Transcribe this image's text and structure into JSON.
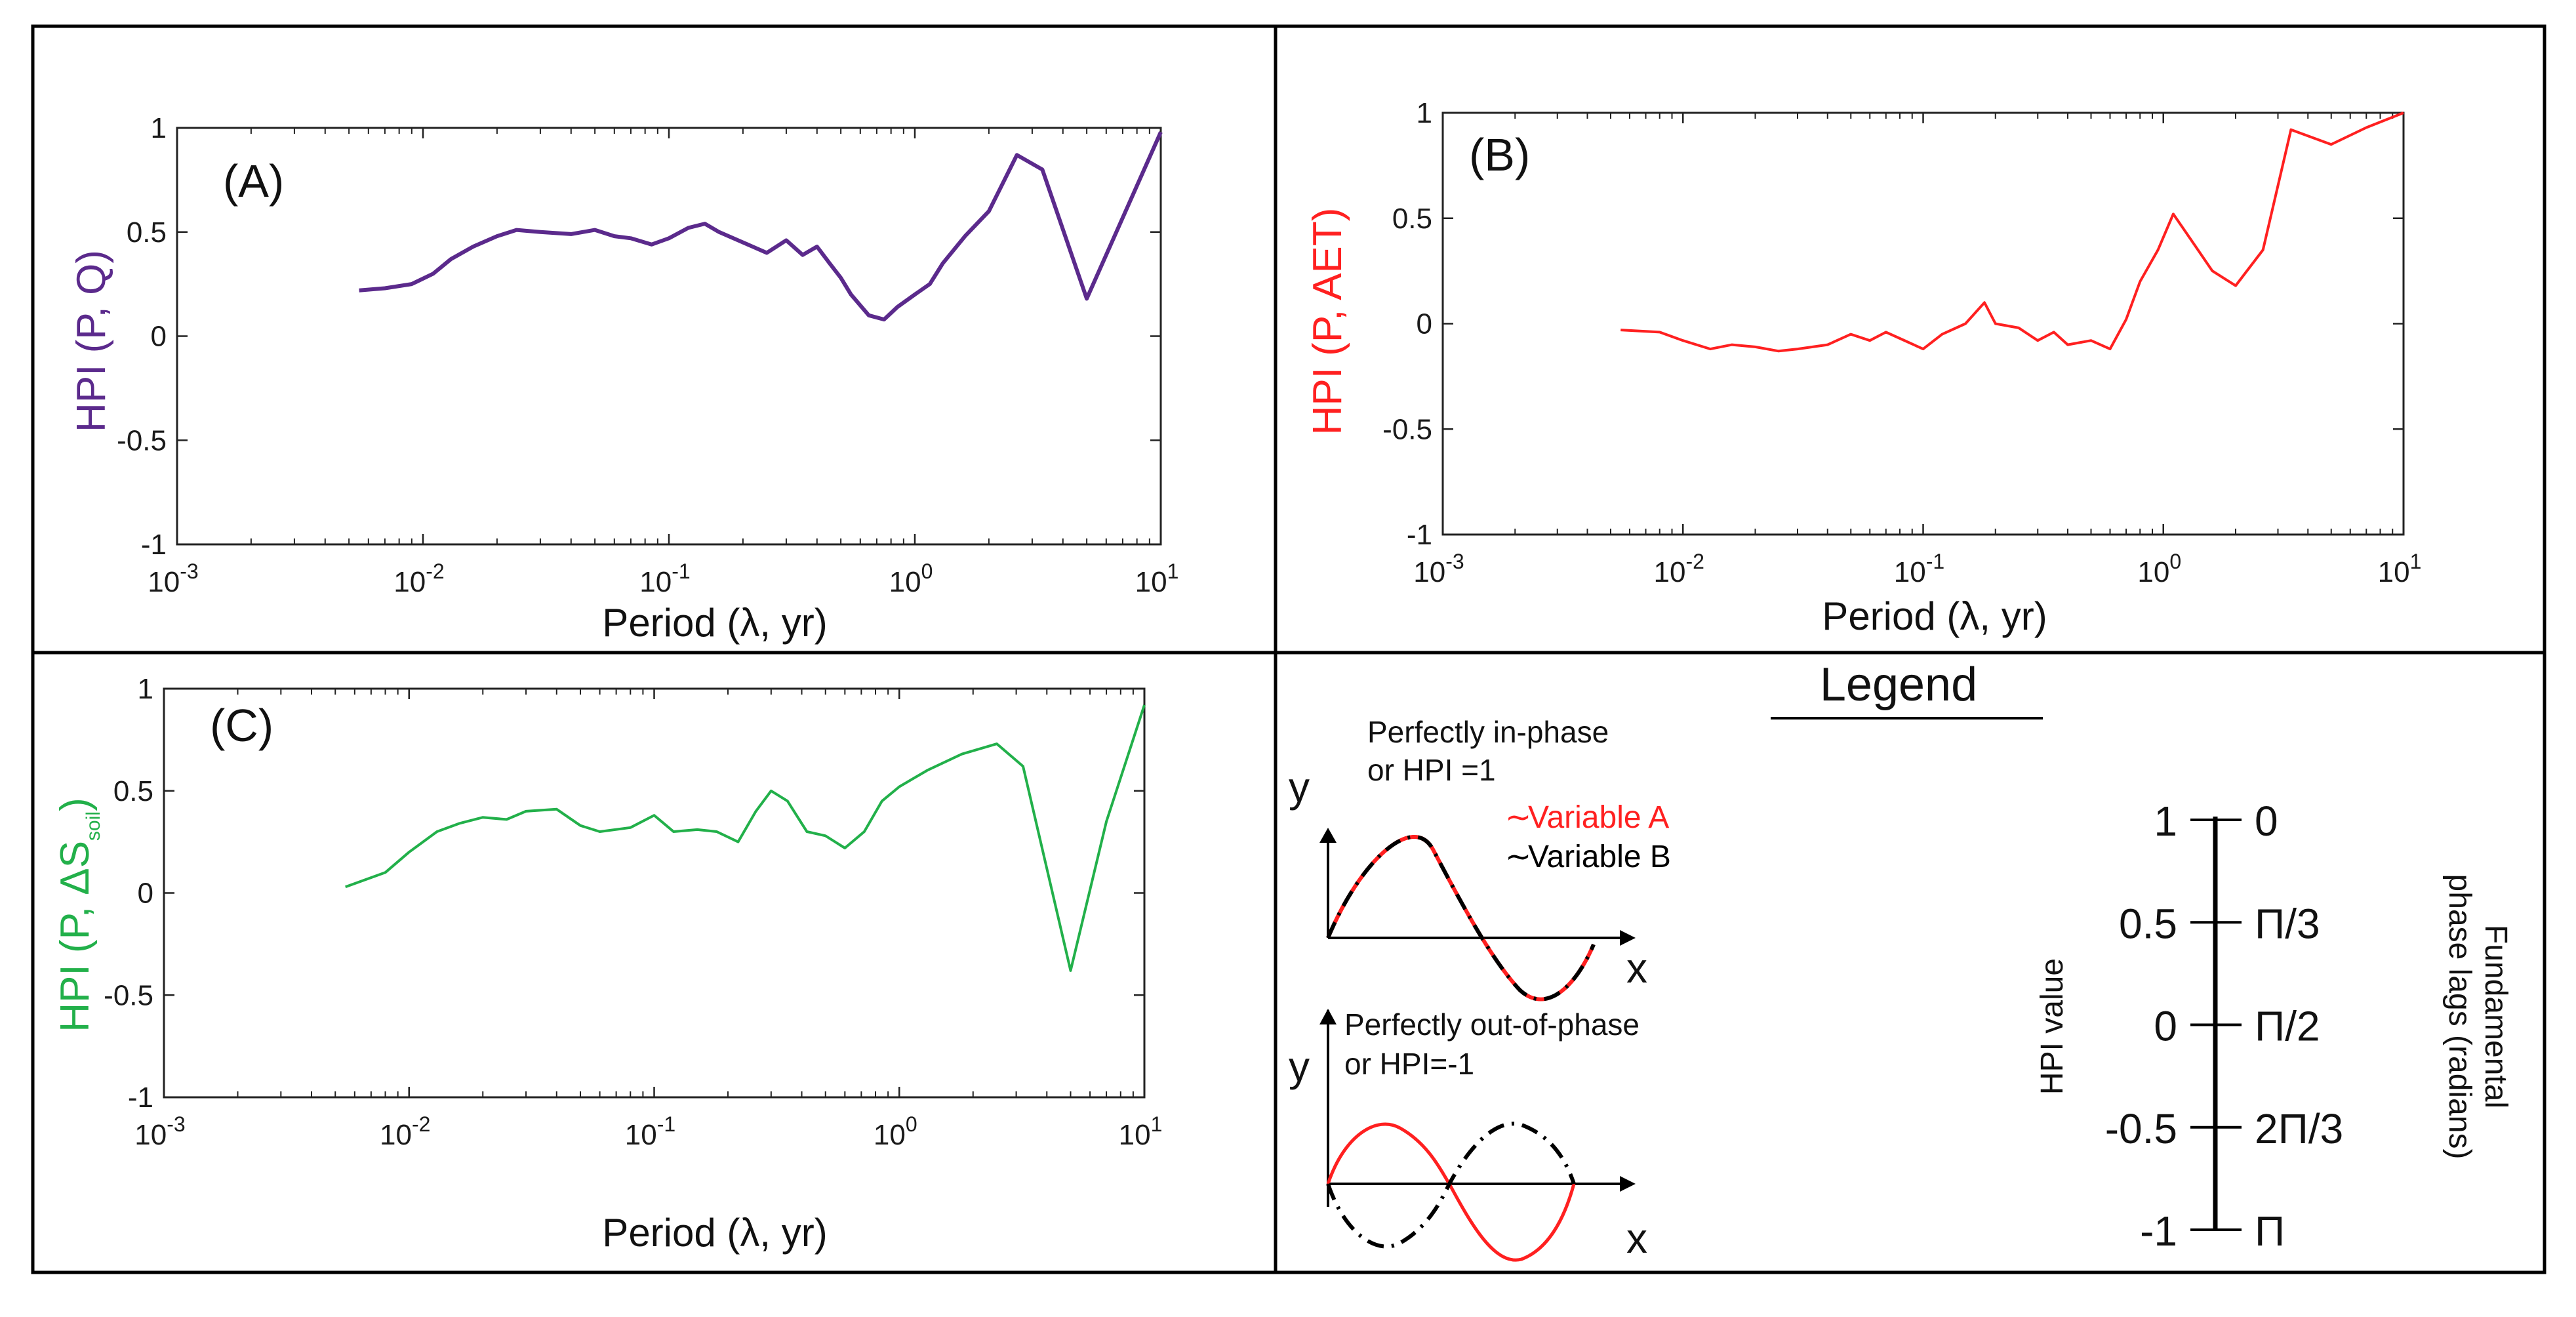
{
  "chart_data": [
    {
      "type": "line",
      "panel_label": "(A)",
      "xlabel": "Period (λ, yr)",
      "ylabel": "HPI (P, Q)",
      "color": "#5b2a8c",
      "xscale": "log",
      "xlim": [
        0.001,
        10
      ],
      "ylim": [
        -1,
        1
      ],
      "xticks": [
        {
          "b": "10",
          "e": "-3"
        },
        {
          "b": "10",
          "e": "-2"
        },
        {
          "b": "10",
          "e": "-1"
        },
        {
          "b": "10",
          "e": "0"
        },
        {
          "b": "10",
          "e": "1"
        }
      ],
      "yticks": [
        "1",
        "0.5",
        "0",
        "-0.5",
        "-1"
      ],
      "x": [
        0.0055,
        0.007,
        0.009,
        0.011,
        0.013,
        0.016,
        0.02,
        0.024,
        0.03,
        0.04,
        0.05,
        0.06,
        0.07,
        0.085,
        0.1,
        0.12,
        0.14,
        0.16,
        0.2,
        0.25,
        0.3,
        0.35,
        0.4,
        0.45,
        0.5,
        0.55,
        0.65,
        0.75,
        0.85,
        1.0,
        1.15,
        1.3,
        1.6,
        2.0,
        2.6,
        3.3,
        5.0,
        10.0
      ],
      "values": [
        0.22,
        0.23,
        0.25,
        0.3,
        0.37,
        0.43,
        0.48,
        0.51,
        0.5,
        0.49,
        0.51,
        0.48,
        0.47,
        0.44,
        0.47,
        0.52,
        0.54,
        0.5,
        0.45,
        0.4,
        0.46,
        0.39,
        0.43,
        0.35,
        0.28,
        0.2,
        0.1,
        0.08,
        0.14,
        0.2,
        0.25,
        0.35,
        0.48,
        0.6,
        0.87,
        0.8,
        0.18,
        0.98
      ]
    },
    {
      "type": "line",
      "panel_label": "(B)",
      "xlabel": "Period (λ, yr)",
      "ylabel": "HPI (P, AET)",
      "color": "#ff2020",
      "xscale": "log",
      "xlim": [
        0.001,
        10
      ],
      "ylim": [
        -1,
        1
      ],
      "xticks": [
        {
          "b": "10",
          "e": "-3"
        },
        {
          "b": "10",
          "e": "-2"
        },
        {
          "b": "10",
          "e": "-1"
        },
        {
          "b": "10",
          "e": "0"
        },
        {
          "b": "10",
          "e": "1"
        }
      ],
      "yticks": [
        "1",
        "0.5",
        "0",
        "-0.5",
        "-1"
      ],
      "x": [
        0.0055,
        0.008,
        0.01,
        0.013,
        0.016,
        0.02,
        0.025,
        0.03,
        0.04,
        0.05,
        0.06,
        0.07,
        0.08,
        0.1,
        0.12,
        0.15,
        0.18,
        0.2,
        0.25,
        0.3,
        0.35,
        0.4,
        0.5,
        0.6,
        0.7,
        0.8,
        0.95,
        1.1,
        1.3,
        1.6,
        2.0,
        2.6,
        3.4,
        5.0,
        7.0,
        10.0
      ],
      "values": [
        -0.03,
        -0.04,
        -0.08,
        -0.12,
        -0.1,
        -0.11,
        -0.13,
        -0.12,
        -0.1,
        -0.05,
        -0.08,
        -0.04,
        -0.07,
        -0.12,
        -0.05,
        0.0,
        0.1,
        0.0,
        -0.02,
        -0.08,
        -0.04,
        -0.1,
        -0.08,
        -0.12,
        0.02,
        0.2,
        0.35,
        0.52,
        0.4,
        0.25,
        0.18,
        0.35,
        0.92,
        0.85,
        0.93,
        1.0
      ]
    },
    {
      "type": "line",
      "panel_label": "(C)",
      "xlabel": "Period (λ, yr)",
      "ylabel_main": "HPI (P, ΔS",
      "ylabel_sub": "soil",
      "ylabel_close": ")",
      "color": "#22b04a",
      "xscale": "log",
      "xlim": [
        0.001,
        10
      ],
      "ylim": [
        -1,
        1
      ],
      "xticks": [
        {
          "b": "10",
          "e": "-3"
        },
        {
          "b": "10",
          "e": "-2"
        },
        {
          "b": "10",
          "e": "-1"
        },
        {
          "b": "10",
          "e": "0"
        },
        {
          "b": "10",
          "e": "1"
        }
      ],
      "yticks": [
        "1",
        "0.5",
        "0",
        "-0.5",
        "-1"
      ],
      "x": [
        0.0055,
        0.008,
        0.01,
        0.013,
        0.016,
        0.02,
        0.025,
        0.03,
        0.04,
        0.05,
        0.06,
        0.08,
        0.1,
        0.12,
        0.15,
        0.18,
        0.22,
        0.26,
        0.3,
        0.35,
        0.42,
        0.5,
        0.6,
        0.72,
        0.85,
        1.0,
        1.3,
        1.8,
        2.5,
        3.2,
        5.0,
        7.0,
        10.0
      ],
      "values": [
        0.03,
        0.1,
        0.2,
        0.3,
        0.34,
        0.37,
        0.36,
        0.4,
        0.41,
        0.33,
        0.3,
        0.32,
        0.38,
        0.3,
        0.31,
        0.3,
        0.25,
        0.4,
        0.5,
        0.45,
        0.3,
        0.28,
        0.22,
        0.3,
        0.45,
        0.52,
        0.6,
        0.68,
        0.73,
        0.62,
        -0.38,
        0.35,
        0.92
      ]
    }
  ],
  "legend": {
    "title": "Legend",
    "in_phase_line1": "Perfectly in-phase",
    "in_phase_line2": "or HPI =1",
    "out_phase_line1": "Perfectly out-of-phase",
    "out_phase_line2": "or HPI=-1",
    "y_axis": "y",
    "x_axis": "x",
    "variable_a": "Variable A",
    "variable_b": "Variable B",
    "swatch_glyph": "~",
    "color_a": "#ff2020",
    "color_b": "#000000",
    "scale": {
      "left_label": "HPI value",
      "right_label_line1": "Fundamental",
      "right_label_line2": "phase lags (radians)",
      "hpi_values": [
        "1",
        "0.5",
        "0",
        "-0.5",
        "-1"
      ],
      "phase_lags": [
        "0",
        "Π/3",
        "Π/2",
        "2Π/3",
        "Π"
      ]
    }
  }
}
